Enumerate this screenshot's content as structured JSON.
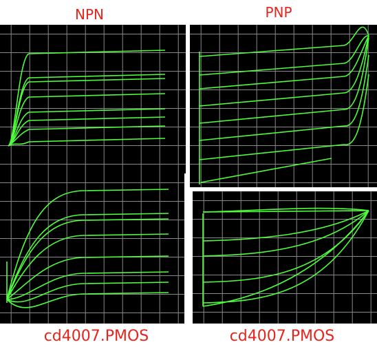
{
  "labels": {
    "top_left": "NPN",
    "top_right": "PNP",
    "bottom_left": "cd4007.PMOS",
    "bottom_right": "cd4007.PMOS"
  }
}
